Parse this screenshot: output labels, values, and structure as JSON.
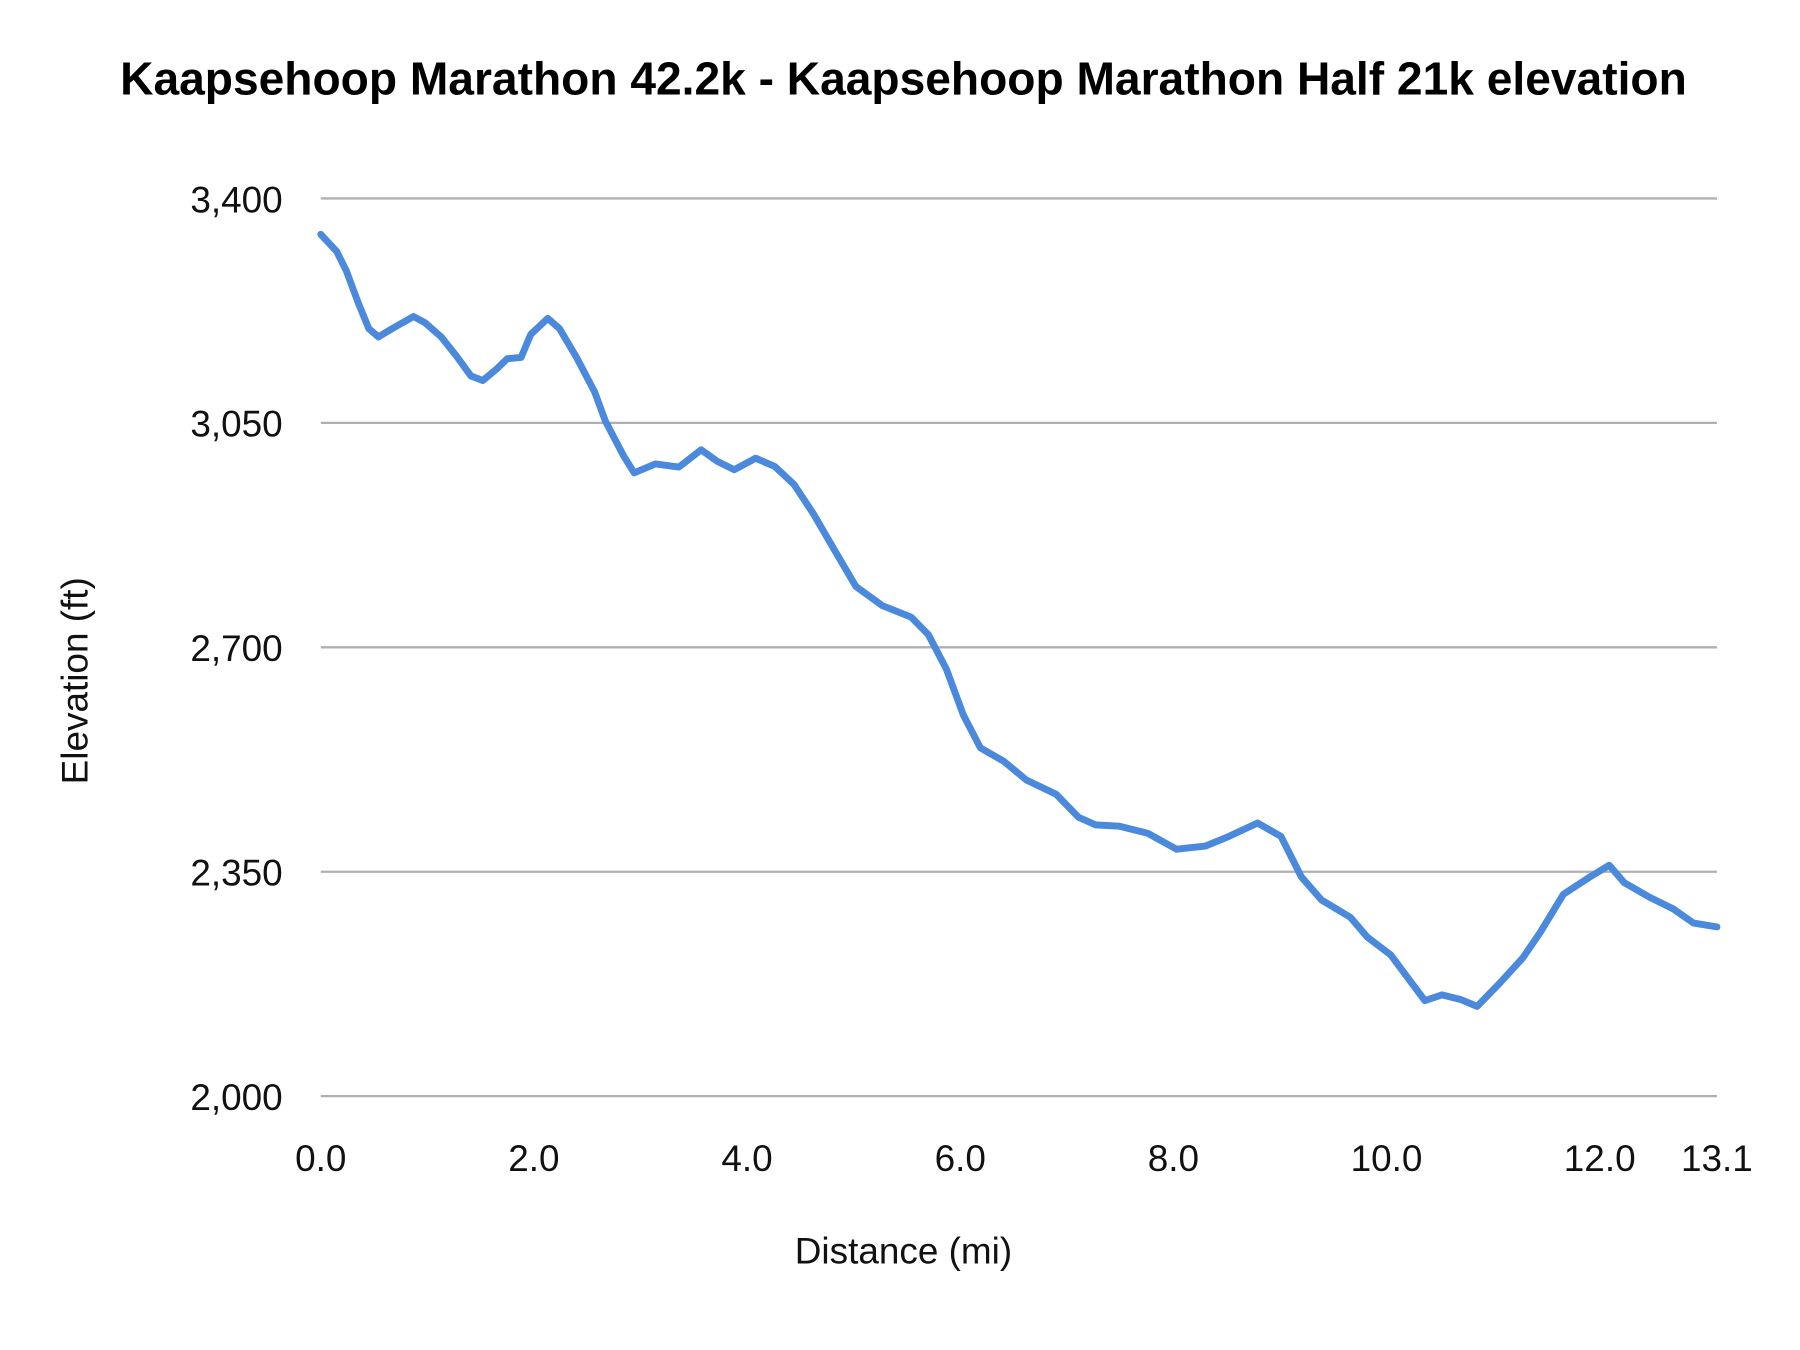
{
  "chart_data": {
    "type": "line",
    "title": "Kaapsehoop Marathon 42.2k - Kaapsehoop Marathon Half 21k elevation",
    "xlabel": "Distance (mi)",
    "ylabel": "Elevation (ft)",
    "xlim": [
      0,
      13.1
    ],
    "ylim": [
      2000,
      3400
    ],
    "x_ticks": [
      "0.0",
      "2.0",
      "4.0",
      "6.0",
      "8.0",
      "10.0",
      "12.0",
      "13.1"
    ],
    "x_tick_values": [
      0,
      2,
      4,
      6,
      8,
      10,
      12,
      13.1
    ],
    "y_ticks": [
      "3,400",
      "3,050",
      "2,700",
      "2,350",
      "2,000"
    ],
    "y_tick_values": [
      3400,
      3050,
      2700,
      2350,
      2000
    ],
    "grid": "horizontal",
    "legend": "none",
    "line_color": "#4a89dc",
    "series": [
      {
        "x": [
          0,
          0.15,
          0.24,
          0.35,
          0.45,
          0.54,
          0.67,
          0.87,
          0.98,
          1.13,
          1.27,
          1.41,
          1.52,
          1.65,
          1.75,
          1.88,
          1.97,
          2.13,
          2.24,
          2.4,
          2.57,
          2.67,
          2.84,
          2.94,
          3.14,
          3.36,
          3.57,
          3.72,
          3.88,
          4.08,
          4.26,
          4.44,
          4.62,
          4.84,
          5.02,
          5.27,
          5.54,
          5.7,
          5.87,
          6.03,
          6.19,
          6.41,
          6.62,
          6.9,
          7.11,
          7.27,
          7.49,
          7.76,
          8.03,
          8.3,
          8.52,
          8.79,
          9.01,
          9.2,
          9.39,
          9.66,
          9.82,
          10.04,
          10.22,
          10.36,
          10.52,
          10.69,
          10.85,
          11.06,
          11.28,
          11.44,
          11.66,
          11.91,
          12.09,
          12.23,
          12.47,
          12.69,
          12.88,
          13.1
        ],
        "y": [
          3344,
          3317,
          3287,
          3238,
          3197,
          3184,
          3197,
          3216,
          3206,
          3184,
          3155,
          3123,
          3116,
          3134,
          3150,
          3152,
          3188,
          3213,
          3197,
          3152,
          3098,
          3053,
          2999,
          2972,
          2986,
          2981,
          3008,
          2990,
          2977,
          2995,
          2982,
          2954,
          2909,
          2846,
          2795,
          2765,
          2747,
          2720,
          2666,
          2594,
          2543,
          2522,
          2493,
          2471,
          2435,
          2423,
          2421,
          2410,
          2385,
          2390,
          2405,
          2426,
          2405,
          2342,
          2306,
          2279,
          2248,
          2220,
          2180,
          2149,
          2158,
          2151,
          2140,
          2176,
          2216,
          2255,
          2315,
          2342,
          2360,
          2333,
          2310,
          2292,
          2270,
          2264
        ]
      }
    ]
  }
}
